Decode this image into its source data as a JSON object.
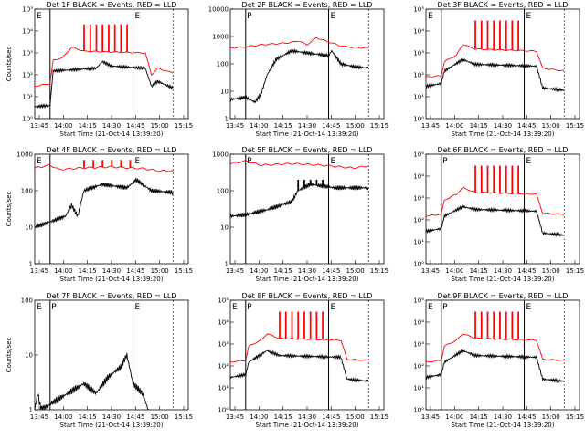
{
  "chart_data": [
    {
      "type": "line",
      "title": "Det 1F BLACK = Events, RED = LLD",
      "ylabel": "Counts/sec",
      "xlabel": "Start Time (21-Oct-14 13:39:20)",
      "yscale": "log",
      "ylim": [
        1,
        100000
      ],
      "yticks": [
        "10⁰",
        "10¹",
        "10²",
        "10³",
        "10⁴",
        "10⁵"
      ],
      "xticks": [
        "13:45",
        "14:00",
        "14:15",
        "14:30",
        "14:45",
        "15:00",
        "15:15"
      ],
      "flags": [
        "E",
        "E"
      ],
      "series": [
        {
          "name": "Events",
          "color": "#000000",
          "points": [
            [
              0,
              3.5
            ],
            [
              5,
              4
            ],
            [
              6,
              150
            ],
            [
              20,
              200
            ],
            [
              22,
              400
            ],
            [
              25,
              250
            ],
            [
              36,
              200
            ],
            [
              38,
              30
            ],
            [
              40,
              50
            ],
            [
              45,
              25
            ]
          ]
        },
        {
          "name": "LLD",
          "color": "#ff0000",
          "points": [
            [
              0,
              30
            ],
            [
              5,
              40
            ],
            [
              6,
              450
            ],
            [
              9,
              600
            ],
            [
              12,
              1800
            ],
            [
              16,
              1200
            ],
            [
              36,
              1000
            ],
            [
              38,
              100
            ],
            [
              40,
              200
            ],
            [
              45,
              120
            ]
          ]
        }
      ],
      "spikes": {
        "series": "LLD",
        "x": [
          16,
          18,
          20,
          22,
          24,
          26,
          28,
          30
        ],
        "peak": 20000
      }
    },
    {
      "type": "line",
      "title": "Det 2F BLACK = Events, RED = LLD",
      "ylabel": "",
      "xlabel": "Start Time (21-Oct-14 13:39:20)",
      "yscale": "log",
      "ylim": [
        1,
        10000
      ],
      "yticks": [
        "1",
        "10",
        "100",
        "1000",
        "10000"
      ],
      "xticks": [
        "13:45",
        "14:00",
        "14:15",
        "14:30",
        "14:45",
        "15:00",
        "15:15"
      ],
      "flags": [
        "P",
        "E"
      ],
      "series": [
        {
          "name": "Events",
          "color": "#000000",
          "points": [
            [
              0,
              5
            ],
            [
              5,
              6
            ],
            [
              8,
              4
            ],
            [
              10,
              8
            ],
            [
              12,
              40
            ],
            [
              15,
              150
            ],
            [
              20,
              300
            ],
            [
              25,
              250
            ],
            [
              32,
              200
            ],
            [
              33,
              300
            ],
            [
              36,
              100
            ],
            [
              40,
              80
            ],
            [
              45,
              70
            ]
          ]
        },
        {
          "name": "LLD",
          "color": "#ff0000",
          "points": [
            [
              0,
              380
            ],
            [
              5,
              420
            ],
            [
              10,
              500
            ],
            [
              20,
              600
            ],
            [
              22,
              700
            ],
            [
              25,
              500
            ],
            [
              28,
              900
            ],
            [
              36,
              450
            ],
            [
              40,
              400
            ],
            [
              45,
              380
            ]
          ]
        }
      ],
      "spikes": null
    },
    {
      "type": "line",
      "title": "Det 3F BLACK = Events, RED = LLD",
      "ylabel": "",
      "xlabel": "Start Time (21-Oct-14 13:39:20)",
      "yscale": "log",
      "ylim": [
        1,
        100000
      ],
      "yticks": [
        "10⁰",
        "10¹",
        "10²",
        "10³",
        "10⁴",
        "10⁵"
      ],
      "xticks": [
        "13:45",
        "14:00",
        "14:15",
        "14:30",
        "14:45",
        "15:00",
        "15:15"
      ],
      "flags": [
        "E",
        "E"
      ],
      "series": [
        {
          "name": "Events",
          "color": "#000000",
          "points": [
            [
              0,
              30
            ],
            [
              5,
              40
            ],
            [
              6,
              150
            ],
            [
              12,
              500
            ],
            [
              16,
              300
            ],
            [
              36,
              250
            ],
            [
              38,
              25
            ],
            [
              45,
              20
            ]
          ]
        },
        {
          "name": "LLD",
          "color": "#ff0000",
          "points": [
            [
              0,
              80
            ],
            [
              5,
              90
            ],
            [
              6,
              400
            ],
            [
              10,
              800
            ],
            [
              12,
              2500
            ],
            [
              16,
              1500
            ],
            [
              36,
              1200
            ],
            [
              38,
              200
            ],
            [
              45,
              150
            ]
          ]
        }
      ],
      "spikes": {
        "series": "LLD",
        "x": [
          16,
          18,
          20,
          22,
          24,
          26,
          28,
          30
        ],
        "peak": 30000
      }
    },
    {
      "type": "line",
      "title": "Det 4F BLACK = Events, RED = LLD",
      "ylabel": "Counts/sec",
      "xlabel": "Start Time (21-Oct-14 13:39:20)",
      "yscale": "log",
      "ylim": [
        1,
        1000
      ],
      "yticks": [
        "1",
        "10",
        "100",
        "1000"
      ],
      "xticks": [
        "13:45",
        "14:00",
        "14:15",
        "14:30",
        "14:45",
        "15:00",
        "15:15"
      ],
      "flags": [
        "E",
        "E"
      ],
      "series": [
        {
          "name": "Events",
          "color": "#000000",
          "points": [
            [
              0,
              10
            ],
            [
              5,
              14
            ],
            [
              10,
              20
            ],
            [
              12,
              40
            ],
            [
              14,
              20
            ],
            [
              16,
              100
            ],
            [
              22,
              150
            ],
            [
              30,
              120
            ],
            [
              33,
              200
            ],
            [
              38,
              100
            ],
            [
              45,
              90
            ]
          ]
        },
        {
          "name": "LLD",
          "color": "#ff0000",
          "points": [
            [
              0,
              420
            ],
            [
              5,
              500
            ],
            [
              8,
              380
            ],
            [
              15,
              420
            ],
            [
              25,
              450
            ],
            [
              36,
              400
            ],
            [
              40,
              350
            ],
            [
              45,
              350
            ]
          ]
        }
      ],
      "spikes": {
        "series": "LLD",
        "x": [
          16,
          19,
          22,
          25,
          28,
          31
        ],
        "peak": 700
      }
    },
    {
      "type": "line",
      "title": "Det 5F BLACK = Events, RED = LLD",
      "ylabel": "",
      "xlabel": "Start Time (21-Oct-14 13:39:20)",
      "yscale": "log",
      "ylim": [
        1,
        1000
      ],
      "yticks": [
        "1",
        "10",
        "100",
        "1000"
      ],
      "xticks": [
        "13:45",
        "14:00",
        "14:15",
        "14:30",
        "14:45",
        "15:00",
        "15:15"
      ],
      "flags": [
        "P",
        "E"
      ],
      "series": [
        {
          "name": "Events",
          "color": "#000000",
          "points": [
            [
              0,
              20
            ],
            [
              5,
              22
            ],
            [
              12,
              30
            ],
            [
              20,
              50
            ],
            [
              22,
              100
            ],
            [
              26,
              150
            ],
            [
              34,
              120
            ],
            [
              40,
              120
            ],
            [
              45,
              120
            ]
          ]
        },
        {
          "name": "LLD",
          "color": "#ff0000",
          "points": [
            [
              0,
              550
            ],
            [
              5,
              650
            ],
            [
              10,
              500
            ],
            [
              20,
              550
            ],
            [
              30,
              500
            ],
            [
              40,
              420
            ],
            [
              45,
              480
            ]
          ]
        }
      ],
      "spikes": {
        "series": "Events",
        "x": [
          22,
          24,
          26,
          28,
          30
        ],
        "peak": 200
      }
    },
    {
      "type": "line",
      "title": "Det 6F BLACK = Events, RED = LLD",
      "ylabel": "",
      "xlabel": "Start Time (21-Oct-14 13:39:20)",
      "yscale": "log",
      "ylim": [
        1,
        100000
      ],
      "yticks": [
        "10⁰",
        "10¹",
        "10²",
        "10³",
        "10⁴",
        "10⁵"
      ],
      "xticks": [
        "13:45",
        "14:00",
        "14:15",
        "14:30",
        "14:45",
        "15:00",
        "15:15"
      ],
      "flags": [
        "P",
        "E"
      ],
      "series": [
        {
          "name": "Events",
          "color": "#000000",
          "points": [
            [
              0,
              30
            ],
            [
              5,
              40
            ],
            [
              6,
              150
            ],
            [
              12,
              400
            ],
            [
              16,
              300
            ],
            [
              36,
              250
            ],
            [
              38,
              25
            ],
            [
              45,
              20
            ]
          ]
        },
        {
          "name": "LLD",
          "color": "#ff0000",
          "points": [
            [
              0,
              150
            ],
            [
              5,
              180
            ],
            [
              6,
              800
            ],
            [
              10,
              1500
            ],
            [
              12,
              3000
            ],
            [
              16,
              1800
            ],
            [
              36,
              1500
            ],
            [
              38,
              200
            ],
            [
              45,
              180
            ]
          ]
        }
      ],
      "spikes": {
        "series": "LLD",
        "x": [
          16,
          18,
          20,
          22,
          24,
          26,
          28,
          30
        ],
        "peak": 30000
      }
    },
    {
      "type": "line",
      "title": "Det 7F BLACK = Events, RED = LLD",
      "ylabel": "Counts/sec",
      "xlabel": "Start Time (21-Oct-14 13:39:20)",
      "yscale": "log",
      "ylim": [
        1,
        100
      ],
      "yticks": [
        "1",
        "10",
        "100"
      ],
      "xticks": [
        "13:45",
        "14:00",
        "14:15",
        "14:30",
        "14:45",
        "15:00",
        "15:15"
      ],
      "flags": [
        "E",
        "P",
        "E"
      ],
      "series": [
        {
          "name": "Events",
          "color": "#000000",
          "points": [
            [
              0,
              1
            ],
            [
              1,
              2
            ],
            [
              2,
              1
            ],
            [
              16,
              3
            ],
            [
              20,
              2
            ],
            [
              24,
              4
            ],
            [
              28,
              6
            ],
            [
              30,
              10
            ],
            [
              32,
              3
            ],
            [
              35,
              2
            ],
            [
              37,
              1
            ]
          ]
        }
      ],
      "spikes": null
    },
    {
      "type": "line",
      "title": "Det 8F BLACK = Events, RED = LLD",
      "ylabel": "",
      "xlabel": "Start Time (21-Oct-14 13:39:20)",
      "yscale": "log",
      "ylim": [
        1,
        100000
      ],
      "yticks": [
        "10⁰",
        "10¹",
        "10²",
        "10³",
        "10⁴",
        "10⁵"
      ],
      "xticks": [
        "13:45",
        "14:00",
        "14:15",
        "14:30",
        "14:45",
        "15:00",
        "15:15"
      ],
      "flags": [
        "E",
        "P",
        "E"
      ],
      "series": [
        {
          "name": "Events",
          "color": "#000000",
          "points": [
            [
              0,
              30
            ],
            [
              5,
              40
            ],
            [
              6,
              150
            ],
            [
              12,
              500
            ],
            [
              16,
              300
            ],
            [
              36,
              250
            ],
            [
              38,
              25
            ],
            [
              45,
              20
            ]
          ]
        },
        {
          "name": "LLD",
          "color": "#ff0000",
          "points": [
            [
              0,
              150
            ],
            [
              5,
              180
            ],
            [
              6,
              800
            ],
            [
              10,
              1500
            ],
            [
              12,
              3000
            ],
            [
              16,
              1800
            ],
            [
              36,
              1500
            ],
            [
              38,
              200
            ],
            [
              45,
              180
            ]
          ]
        }
      ],
      "spikes": {
        "series": "LLD",
        "x": [
          16,
          18,
          20,
          22,
          24,
          26,
          28,
          30
        ],
        "peak": 30000
      }
    },
    {
      "type": "line",
      "title": "Det 9F BLACK = Events, RED = LLD",
      "ylabel": "",
      "xlabel": "Start Time (21-Oct-14 13:39:20)",
      "yscale": "log",
      "ylim": [
        1,
        100000
      ],
      "yticks": [
        "10⁰",
        "10¹",
        "10²",
        "10³",
        "10⁴",
        "10⁵"
      ],
      "xticks": [
        "13:45",
        "14:00",
        "14:15",
        "14:30",
        "14:45",
        "15:00",
        "15:15"
      ],
      "flags": [
        "E",
        "P",
        "E"
      ],
      "series": [
        {
          "name": "Events",
          "color": "#000000",
          "points": [
            [
              0,
              30
            ],
            [
              5,
              40
            ],
            [
              6,
              150
            ],
            [
              12,
              500
            ],
            [
              16,
              300
            ],
            [
              36,
              250
            ],
            [
              38,
              25
            ],
            [
              45,
              20
            ]
          ]
        },
        {
          "name": "LLD",
          "color": "#ff0000",
          "points": [
            [
              0,
              150
            ],
            [
              5,
              180
            ],
            [
              6,
              800
            ],
            [
              10,
              1500
            ],
            [
              12,
              3000
            ],
            [
              16,
              1800
            ],
            [
              36,
              1500
            ],
            [
              38,
              200
            ],
            [
              45,
              180
            ]
          ]
        }
      ],
      "spikes": {
        "series": "LLD",
        "x": [
          16,
          18,
          20,
          22,
          24,
          26,
          28,
          30
        ],
        "peak": 30000
      }
    }
  ]
}
